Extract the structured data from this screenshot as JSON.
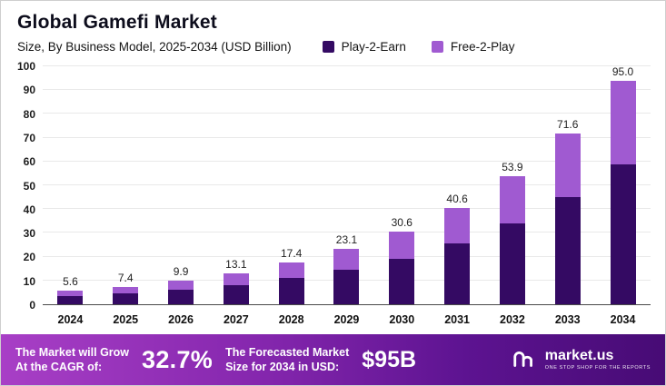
{
  "header": {
    "title": "Global Gamefi Market",
    "subtitle": "Size, By Business Model, 2025-2034 (USD Billion)"
  },
  "legend": [
    {
      "label": "Play-2-Earn",
      "color": "#340a63"
    },
    {
      "label": "Free-2-Play",
      "color": "#a05ad1"
    }
  ],
  "chart_data": {
    "type": "bar",
    "stacked": true,
    "title": "Global Gamefi Market",
    "subtitle": "Size, By Business Model, 2025-2034 (USD Billion)",
    "categories": [
      "2024",
      "2025",
      "2026",
      "2027",
      "2028",
      "2029",
      "2030",
      "2031",
      "2032",
      "2033",
      "2034"
    ],
    "series": [
      {
        "name": "Play-2-Earn",
        "color": "#340a63",
        "values": [
          3.5,
          4.6,
          6.2,
          8.2,
          10.9,
          14.5,
          19.2,
          25.4,
          33.8,
          44.9,
          59.6
        ]
      },
      {
        "name": "Free-2-Play",
        "color": "#a05ad1",
        "values": [
          2.1,
          2.8,
          3.7,
          4.9,
          6.5,
          8.6,
          11.4,
          15.2,
          20.1,
          26.7,
          35.4
        ]
      }
    ],
    "totals": [
      5.6,
      7.4,
      9.9,
      13.1,
      17.4,
      23.1,
      30.6,
      40.6,
      53.9,
      71.6,
      95.0
    ],
    "total_labels": [
      "5.6",
      "7.4",
      "9.9",
      "13.1",
      "17.4",
      "23.1",
      "30.6",
      "40.6",
      "53.9",
      "71.6",
      "95.0"
    ],
    "ylim": [
      0,
      100
    ],
    "yticks": [
      0,
      10,
      20,
      30,
      40,
      50,
      60,
      70,
      80,
      90,
      100
    ],
    "grid": true,
    "legend_position": "top"
  },
  "banner": {
    "cagr_label_line1": "The Market will Grow",
    "cagr_label_line2": "At the CAGR of:",
    "cagr_value": "32.7%",
    "forecast_label_line1": "The Forecasted Market",
    "forecast_label_line2": "Size for 2034 in USD:",
    "forecast_value": "$95B",
    "brand": "market.us",
    "brand_tagline": "ONE STOP SHOP FOR THE REPORTS"
  }
}
